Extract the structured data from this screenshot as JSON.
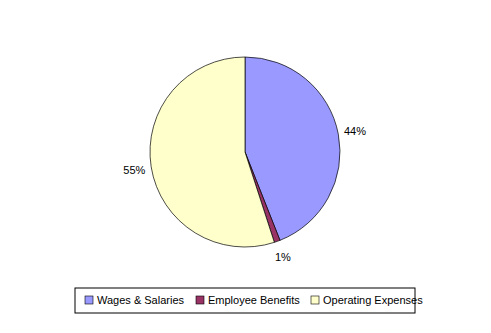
{
  "chart_data": {
    "type": "pie",
    "categories": [
      "Wages & Salaries",
      "Employee Benefits",
      "Operating Expenses"
    ],
    "values": [
      44,
      1,
      55
    ],
    "value_labels": [
      "44%",
      "1%",
      "55%"
    ],
    "colors": [
      "#9999ff",
      "#993366",
      "#ffffcc"
    ],
    "data_labels": true,
    "legend": "bottom"
  }
}
